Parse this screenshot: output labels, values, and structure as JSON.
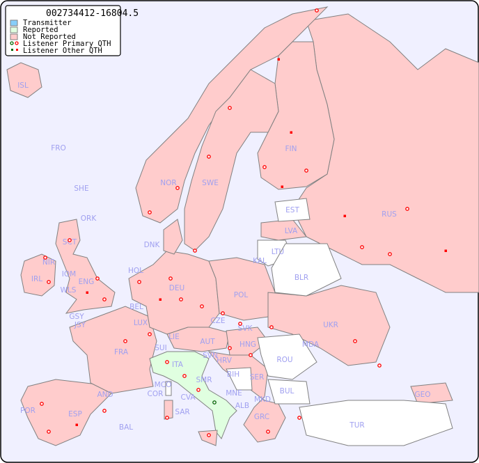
{
  "title": "002734412-16804.5",
  "legend": {
    "items": [
      {
        "label": "Transmitter",
        "color": "#87cefa"
      },
      {
        "label": "Reported",
        "color": "#e0ffe0"
      },
      {
        "label": "Not Reported",
        "color": "#ffcccc"
      },
      {
        "label": "Listener Primary QTH",
        "marker": "circle"
      },
      {
        "label": "Listener Other QTH",
        "marker": "square"
      }
    ]
  },
  "colors": {
    "sea": "#f0f0ff",
    "not_reported": "#ffcccc",
    "reported": "#e0ffe0",
    "no_data": "#ffffff",
    "label": "#a0a0f0",
    "listener": "#ff0000",
    "transmitter_marker": "#006400"
  },
  "countries": {
    "ISL": "ISL",
    "FRO": "FRO",
    "SHE": "SHE",
    "ORK": "ORK",
    "NOR": "NOR",
    "SWE": "SWE",
    "FIN": "FIN",
    "EST": "EST",
    "RUS": "RUS",
    "LVA": "LVA",
    "LTU": "LTU",
    "KAL": "KAL",
    "BLR": "BLR",
    "DNK": "DNK",
    "SCT": "SCT",
    "NIR": "NIR",
    "IRL": "IRL",
    "IOM": "IOM",
    "WLS": "WLS",
    "ENG": "ENG",
    "HOL": "HOL",
    "BEL": "BEL",
    "LUX": "LUX",
    "DEU": "DEU",
    "POL": "POL",
    "GSY": "GSY",
    "JSY": "JSY",
    "FRA": "FRA",
    "SUI": "SUI",
    "LIE": "LIE",
    "AUT": "AUT",
    "CZE": "CZE",
    "SVK": "SVK",
    "HNG": "HNG",
    "SVN": "SVN",
    "HRV": "HRV",
    "BIH": "BIH",
    "SER": "SER",
    "ROU": "ROU",
    "MDA": "MDA",
    "UKR": "UKR",
    "BUL": "BUL",
    "MNE": "MNE",
    "MKD": "MKD",
    "ALB": "ALB",
    "GRC": "GRC",
    "TUR": "TUR",
    "GEO": "GEO",
    "ITA": "ITA",
    "SMR": "SMR",
    "MCO": "MCO",
    "COR": "COR",
    "CVA": "CVA",
    "SAR": "SAR",
    "AND": "AND",
    "ESP": "ESP",
    "POR": "POR",
    "BAL": "BAL"
  }
}
